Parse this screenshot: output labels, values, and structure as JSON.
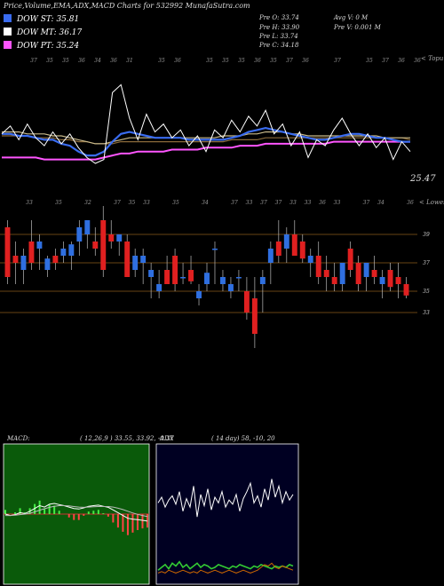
{
  "header": {
    "title": "Price,Volume,EMA,ADX,MACD Charts for 532992 MunafaSutra.com"
  },
  "legend": [
    {
      "label": "DOW ST: 35.81",
      "color": "#3a6cf0"
    },
    {
      "label": "DOW MT: 36.17",
      "color": "#ffffff"
    },
    {
      "label": "DOW PT: 35.24",
      "color": "#ff55ff"
    }
  ],
  "info": {
    "prev_open": "Pre   O: 33.74",
    "prev_high": "Pre   H: 33.90",
    "prev_low": "Pre   L: 33.74",
    "prev_close": "Pre   C: 34.18",
    "avg_vol": "Avg V: 0   M",
    "prev_vol": "Pre   V: 0.001 M"
  },
  "panel_labels": {
    "price_right_top": "< Topu",
    "price_last": "25.47",
    "candle_right_top": "< Lowes"
  },
  "macd_title": "MACD:",
  "macd_params": "( 12,26,9 ) 33.55,  33.92,  -0.37",
  "adx_title": "ADX",
  "adx_params": "( 14  day) 58, -10,  20",
  "chart_data": [
    {
      "type": "line",
      "name": "price-ema",
      "top_ticks": [
        "37",
        "35",
        "35",
        "36",
        "34",
        "36",
        "31",
        "",
        "35",
        "36",
        "",
        "35",
        "35",
        "35",
        "36",
        "35",
        "37",
        "36",
        "",
        "37",
        "",
        "35",
        "37",
        "36",
        "36"
      ],
      "series": [
        {
          "name": "close",
          "color": "#ffffff",
          "values": [
            36.4,
            36.8,
            36.1,
            36.9,
            36.2,
            35.8,
            36.5,
            35.9,
            36.4,
            35.7,
            35.2,
            34.9,
            35.1,
            38.5,
            38.9,
            37.2,
            36.1,
            37.4,
            36.5,
            36.9,
            36.2,
            36.6,
            35.8,
            36.3,
            35.5,
            36.6,
            36.2,
            37.1,
            36.5,
            37.3,
            36.8,
            37.6,
            36.4,
            36.9,
            35.8,
            36.5,
            35.2,
            36.1,
            35.8,
            36.6,
            37.2,
            36.4,
            35.8,
            36.4,
            35.7,
            36.2,
            35.1,
            36.0,
            35.5
          ]
        },
        {
          "name": "ema-short",
          "color": "#3a6cf0",
          "values": [
            36.4,
            36.4,
            36.3,
            36.3,
            36.2,
            36.1,
            36.1,
            35.9,
            35.8,
            35.5,
            35.3,
            35.3,
            35.5,
            36.0,
            36.4,
            36.5,
            36.4,
            36.3,
            36.2,
            36.2,
            36.2,
            36.2,
            36.1,
            36.1,
            36.1,
            36.1,
            36.1,
            36.2,
            36.3,
            36.5,
            36.6,
            36.7,
            36.6,
            36.5,
            36.4,
            36.3,
            36.2,
            36.1,
            36.1,
            36.2,
            36.3,
            36.4,
            36.4,
            36.3,
            36.2,
            36.2,
            36.1,
            36.0,
            36.0
          ]
        },
        {
          "name": "ema-mid",
          "color": "#c8b98a",
          "values": [
            36.5,
            36.5,
            36.5,
            36.4,
            36.4,
            36.4,
            36.3,
            36.3,
            36.2,
            36.1,
            36.0,
            35.9,
            35.9,
            36.0,
            36.1,
            36.2,
            36.2,
            36.2,
            36.2,
            36.2,
            36.2,
            36.2,
            36.2,
            36.2,
            36.2,
            36.2,
            36.3,
            36.3,
            36.3,
            36.4,
            36.4,
            36.5,
            36.5,
            36.5,
            36.4,
            36.4,
            36.3,
            36.3,
            36.3,
            36.3,
            36.3,
            36.3,
            36.3,
            36.3,
            36.3,
            36.2,
            36.2,
            36.2,
            36.2
          ]
        },
        {
          "name": "ema-long",
          "color": "#8a6a3a",
          "values": [
            36.3,
            36.3,
            36.3,
            36.3,
            36.2,
            36.2,
            36.2,
            36.1,
            36.1,
            36.0,
            36.0,
            35.9,
            35.9,
            35.9,
            36.0,
            36.0,
            36.0,
            36.0,
            36.0,
            36.0,
            36.0,
            36.0,
            36.0,
            36.0,
            36.0,
            36.0,
            36.0,
            36.1,
            36.1,
            36.1,
            36.1,
            36.2,
            36.2,
            36.2,
            36.2,
            36.2,
            36.2,
            36.2,
            36.2,
            36.2,
            36.2,
            36.2,
            36.2,
            36.2,
            36.2,
            36.2,
            36.2,
            36.2,
            36.1
          ]
        },
        {
          "name": "ema-pt",
          "color": "#ff55ff",
          "values": [
            35.2,
            35.2,
            35.2,
            35.2,
            35.2,
            35.1,
            35.1,
            35.1,
            35.1,
            35.1,
            35.1,
            35.1,
            35.2,
            35.3,
            35.4,
            35.4,
            35.5,
            35.5,
            35.5,
            35.5,
            35.6,
            35.6,
            35.6,
            35.6,
            35.7,
            35.7,
            35.7,
            35.7,
            35.8,
            35.8,
            35.8,
            35.9,
            35.9,
            35.9,
            35.9,
            35.9,
            35.9,
            35.9,
            35.9,
            36.0,
            36.0,
            36.0,
            36.0,
            36.0,
            36.0,
            36.0,
            36.0,
            36.0,
            36.0
          ]
        }
      ],
      "ylim": [
        33.5,
        40.5
      ]
    },
    {
      "type": "candlestick",
      "name": "candles",
      "top_ticks": [
        "33",
        "",
        "35",
        "",
        "32",
        "",
        "37",
        "35",
        "33",
        "",
        "35",
        "",
        "34",
        "",
        "37",
        "33",
        "37",
        "37",
        "33",
        "33",
        "36",
        "33",
        "",
        "37",
        "34",
        "",
        "36"
      ],
      "price_lines": [
        38.5,
        36.5,
        34.5,
        33.0
      ],
      "right_ticks": [
        "39",
        "37",
        "35",
        "33"
      ],
      "ylim": [
        30,
        40
      ],
      "candles": [
        {
          "o": 39.0,
          "h": 39.5,
          "l": 35.0,
          "c": 35.5
        },
        {
          "o": 37.0,
          "h": 38.0,
          "l": 35.0,
          "c": 36.5
        },
        {
          "o": 36.0,
          "h": 37.5,
          "l": 35.0,
          "c": 37.0
        },
        {
          "o": 38.0,
          "h": 39.5,
          "l": 36.0,
          "c": 36.5
        },
        {
          "o": 37.5,
          "h": 38.5,
          "l": 36.0,
          "c": 38.0
        },
        {
          "o": 36.0,
          "h": 37.0,
          "l": 35.5,
          "c": 36.8
        },
        {
          "o": 37.0,
          "h": 37.5,
          "l": 36.0,
          "c": 36.5
        },
        {
          "o": 37.0,
          "h": 38.0,
          "l": 36.5,
          "c": 37.5
        },
        {
          "o": 37.0,
          "h": 38.0,
          "l": 36.0,
          "c": 37.8
        },
        {
          "o": 38.0,
          "h": 39.5,
          "l": 37.0,
          "c": 39.0
        },
        {
          "o": 38.5,
          "h": 39.5,
          "l": 37.5,
          "c": 39.5
        },
        {
          "o": 38.0,
          "h": 39.0,
          "l": 37.0,
          "c": 37.5
        },
        {
          "o": 39.5,
          "h": 40.5,
          "l": 35.5,
          "c": 36.0
        },
        {
          "o": 38.5,
          "h": 39.5,
          "l": 37.5,
          "c": 38.0
        },
        {
          "o": 38.0,
          "h": 38.5,
          "l": 37.0,
          "c": 38.5
        },
        {
          "o": 38.0,
          "h": 38.5,
          "l": 35.5,
          "c": 35.5
        },
        {
          "o": 36.0,
          "h": 37.5,
          "l": 35.5,
          "c": 37.0
        },
        {
          "o": 36.5,
          "h": 37.5,
          "l": 35.0,
          "c": 37.0
        },
        {
          "o": 35.5,
          "h": 36.5,
          "l": 34.0,
          "c": 36.0
        },
        {
          "o": 34.5,
          "h": 36.0,
          "l": 34.0,
          "c": 35.0
        },
        {
          "o": 36.0,
          "h": 37.0,
          "l": 35.0,
          "c": 35.0
        },
        {
          "o": 37.0,
          "h": 37.5,
          "l": 34.5,
          "c": 35.0
        },
        {
          "o": 35.5,
          "h": 36.5,
          "l": 35.0,
          "c": 35.5
        },
        {
          "o": 36.0,
          "h": 37.0,
          "l": 35.0,
          "c": 35.2
        },
        {
          "o": 34.0,
          "h": 35.0,
          "l": 33.5,
          "c": 34.5
        },
        {
          "o": 35.0,
          "h": 36.5,
          "l": 34.5,
          "c": 35.8
        },
        {
          "o": 37.5,
          "h": 38.0,
          "l": 35.0,
          "c": 37.5
        },
        {
          "o": 35.0,
          "h": 36.0,
          "l": 34.5,
          "c": 35.5
        },
        {
          "o": 34.5,
          "h": 35.5,
          "l": 34.0,
          "c": 35.0
        },
        {
          "o": 35.5,
          "h": 36.0,
          "l": 34.5,
          "c": 35.5
        },
        {
          "o": 34.5,
          "h": 35.5,
          "l": 32.5,
          "c": 33.0
        },
        {
          "o": 34.0,
          "h": 35.5,
          "l": 30.5,
          "c": 31.5
        },
        {
          "o": 35.0,
          "h": 36.0,
          "l": 33.0,
          "c": 35.5
        },
        {
          "o": 36.5,
          "h": 38.0,
          "l": 35.0,
          "c": 37.5
        },
        {
          "o": 38.0,
          "h": 39.5,
          "l": 36.5,
          "c": 37.0
        },
        {
          "o": 37.5,
          "h": 39.0,
          "l": 36.5,
          "c": 38.5
        },
        {
          "o": 38.5,
          "h": 39.5,
          "l": 37.0,
          "c": 37.0
        },
        {
          "o": 38.0,
          "h": 38.5,
          "l": 36.5,
          "c": 36.8
        },
        {
          "o": 36.5,
          "h": 37.5,
          "l": 35.5,
          "c": 37.0
        },
        {
          "o": 37.0,
          "h": 38.0,
          "l": 35.0,
          "c": 35.5
        },
        {
          "o": 36.0,
          "h": 37.0,
          "l": 34.5,
          "c": 35.5
        },
        {
          "o": 35.5,
          "h": 36.5,
          "l": 34.5,
          "c": 35.0
        },
        {
          "o": 35.0,
          "h": 36.5,
          "l": 34.5,
          "c": 36.5
        },
        {
          "o": 37.5,
          "h": 38.0,
          "l": 35.5,
          "c": 36.0
        },
        {
          "o": 36.5,
          "h": 37.0,
          "l": 34.5,
          "c": 35.0
        },
        {
          "o": 35.5,
          "h": 36.5,
          "l": 34.5,
          "c": 36.5
        },
        {
          "o": 36.0,
          "h": 37.0,
          "l": 35.0,
          "c": 35.5
        },
        {
          "o": 35.0,
          "h": 36.0,
          "l": 34.0,
          "c": 35.5
        },
        {
          "o": 36.0,
          "h": 36.5,
          "l": 34.5,
          "c": 34.8
        },
        {
          "o": 35.5,
          "h": 36.5,
          "l": 34.0,
          "c": 35.0
        },
        {
          "o": 35.0,
          "h": 35.5,
          "l": 34.0,
          "c": 34.2
        }
      ]
    },
    {
      "type": "line",
      "name": "macd",
      "series": [
        {
          "name": "macd",
          "color": "#ffffff",
          "values": [
            0.0,
            -0.05,
            -0.02,
            0.05,
            0.02,
            0.1,
            0.2,
            0.3,
            0.25,
            0.35,
            0.38,
            0.34,
            0.3,
            0.25,
            0.2,
            0.18,
            0.22,
            0.28,
            0.3,
            0.32,
            0.28,
            0.24,
            0.15,
            0.05,
            -0.05,
            -0.15,
            -0.18,
            -0.2,
            -0.22,
            -0.25
          ]
        },
        {
          "name": "signal",
          "color": "#bbbbbb",
          "values": [
            -0.05,
            -0.05,
            -0.04,
            -0.02,
            0.0,
            0.03,
            0.08,
            0.14,
            0.19,
            0.24,
            0.28,
            0.3,
            0.3,
            0.29,
            0.27,
            0.25,
            0.24,
            0.25,
            0.26,
            0.27,
            0.27,
            0.27,
            0.25,
            0.21,
            0.16,
            0.1,
            0.04,
            -0.01,
            -0.05,
            -0.09
          ]
        }
      ],
      "ylim": [
        -2.5,
        2.5
      ]
    },
    {
      "type": "line",
      "name": "adx",
      "series": [
        {
          "name": "adx",
          "color": "#ffffff",
          "values": [
            58,
            62,
            55,
            60,
            63,
            57,
            66,
            52,
            61,
            55,
            70,
            48,
            64,
            56,
            68,
            53,
            62,
            58,
            66,
            55,
            60,
            57,
            64,
            52,
            61,
            66,
            72,
            58,
            63,
            55,
            68,
            60,
            75,
            62,
            70,
            58,
            66,
            60,
            64
          ]
        },
        {
          "name": "di-plus",
          "color": "#33cc33",
          "values": [
            10,
            12,
            14,
            11,
            15,
            13,
            16,
            12,
            14,
            11,
            13,
            15,
            12,
            14,
            13,
            11,
            12,
            14,
            13,
            12,
            11,
            13,
            12,
            14,
            13,
            12,
            11,
            13,
            12,
            14,
            13,
            12,
            11,
            13,
            12,
            13,
            12,
            14,
            13
          ]
        },
        {
          "name": "di-minus",
          "color": "#cc6600",
          "values": [
            8,
            9,
            8,
            10,
            9,
            8,
            9,
            10,
            9,
            8,
            9,
            8,
            10,
            9,
            8,
            9,
            10,
            9,
            8,
            9,
            10,
            9,
            8,
            9,
            10,
            9,
            8,
            9,
            10,
            12,
            14,
            13,
            15,
            12,
            11,
            13,
            12,
            11,
            10
          ]
        }
      ],
      "ylim": [
        0,
        100
      ]
    }
  ]
}
